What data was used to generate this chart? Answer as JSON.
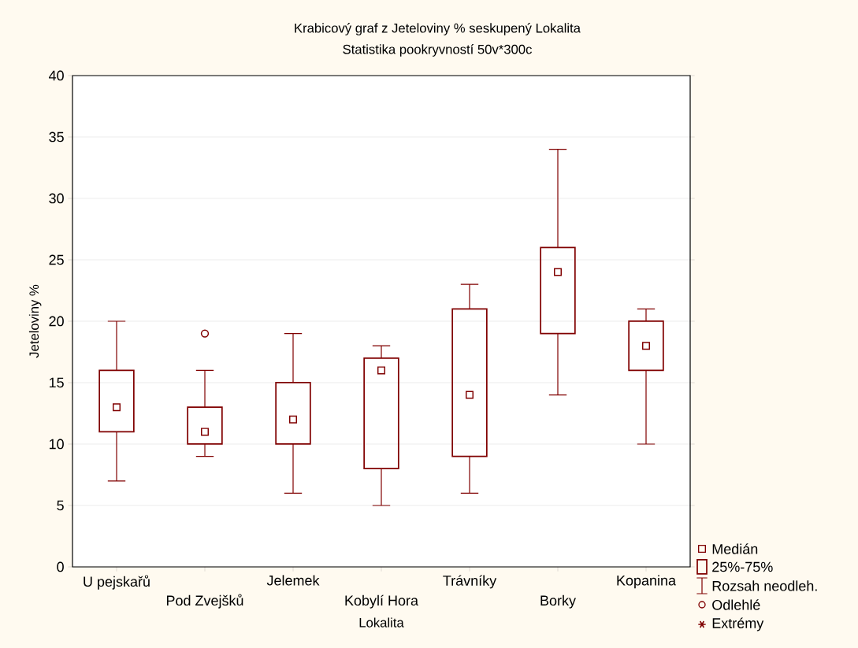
{
  "chart_data": {
    "type": "box",
    "title": "Krabicový graf z Jeteloviny % seskupený Lokalita",
    "subtitle": "Statistika pookryvností 50v*300c",
    "xlabel": "Lokalita",
    "ylabel": "Jeteloviny %",
    "categories": [
      "U pejskařů",
      "Pod Zvejšků",
      "Jelemek",
      "Kobylí Hora",
      "Trávníky",
      "Borky",
      "Kopanina"
    ],
    "boxes": [
      {
        "low": 7,
        "q1": 11,
        "median": 13,
        "q3": 16,
        "high": 20
      },
      {
        "low": 9,
        "q1": 10,
        "median": 11,
        "q3": 13,
        "high": 16,
        "outliers": [
          19
        ]
      },
      {
        "low": 6,
        "q1": 10,
        "median": 12,
        "q3": 15,
        "high": 19
      },
      {
        "low": 5,
        "q1": 8,
        "median": 16,
        "q3": 17,
        "high": 18
      },
      {
        "low": 6,
        "q1": 9,
        "median": 14,
        "q3": 21,
        "high": 23
      },
      {
        "low": 14,
        "q1": 19,
        "median": 24,
        "q3": 26,
        "high": 34
      },
      {
        "low": 10,
        "q1": 16,
        "median": 18,
        "q3": 20,
        "high": 21
      }
    ],
    "color": "#800000",
    "ylim": [
      0,
      40
    ],
    "yticks": [
      0,
      5,
      10,
      15,
      20,
      25,
      30,
      35,
      40
    ],
    "grid": "y",
    "marker": "square",
    "annotations": [
      "Medián",
      "25%-75%",
      "Rozsah neodleh.",
      "Odlehlé",
      "Extrémy"
    ]
  }
}
